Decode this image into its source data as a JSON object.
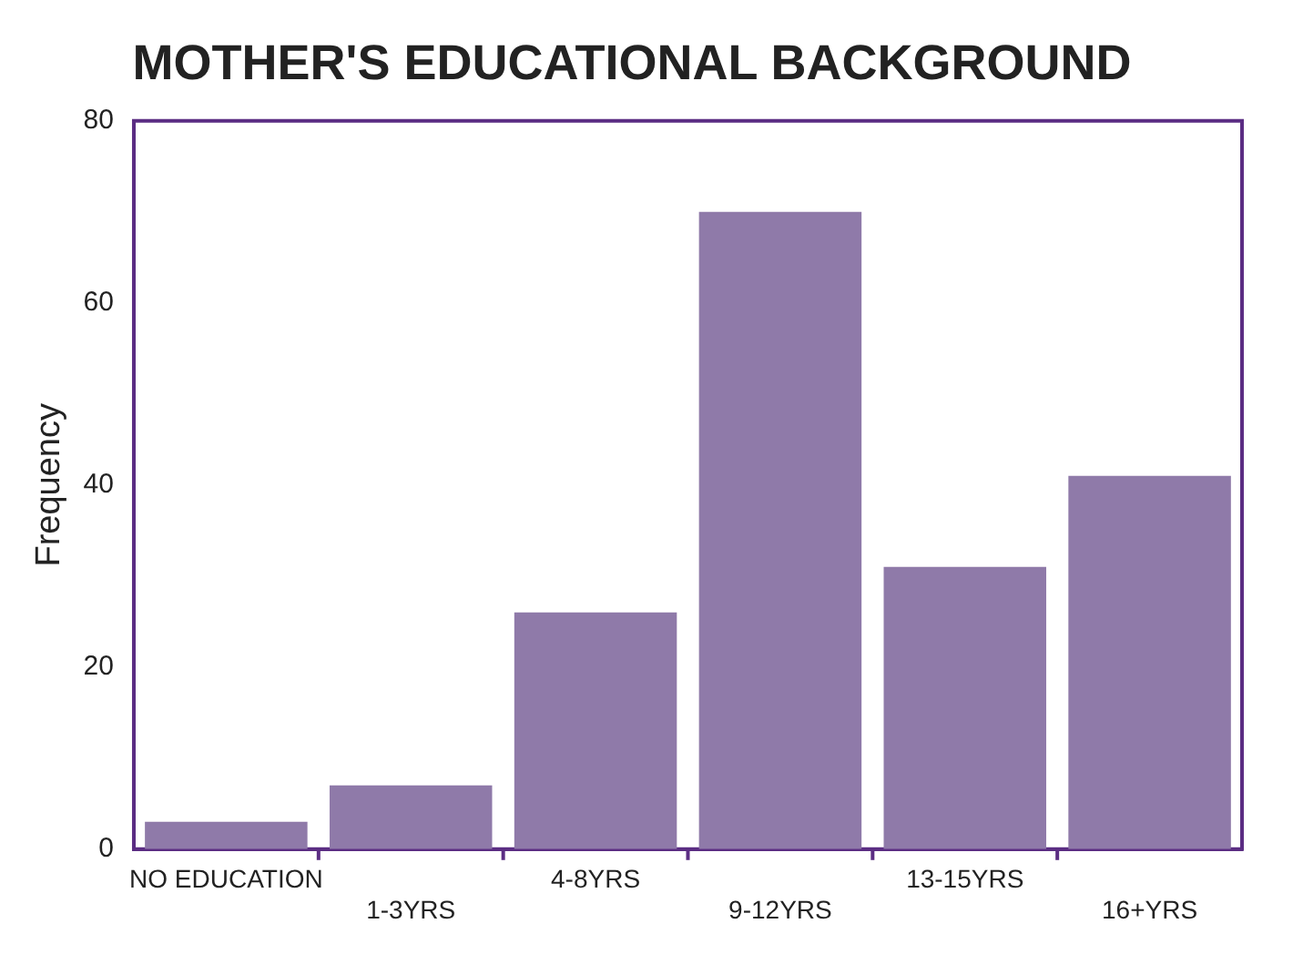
{
  "chart_data": {
    "type": "bar",
    "title": "MOTHER'S EDUCATIONAL BACKGROUND",
    "ylabel": "Frequency",
    "categories": [
      "NO EDUCATION",
      "1-3YRS",
      "4-8YRS",
      "9-12YRS",
      "13-15YRS",
      "16+YRS"
    ],
    "values": [
      3,
      7,
      26,
      70,
      31,
      41
    ],
    "color": "#8f7aa9",
    "ylim": [
      0,
      80
    ],
    "yticks": [
      0,
      20,
      40,
      60,
      80
    ],
    "grid": false,
    "legend": false
  }
}
